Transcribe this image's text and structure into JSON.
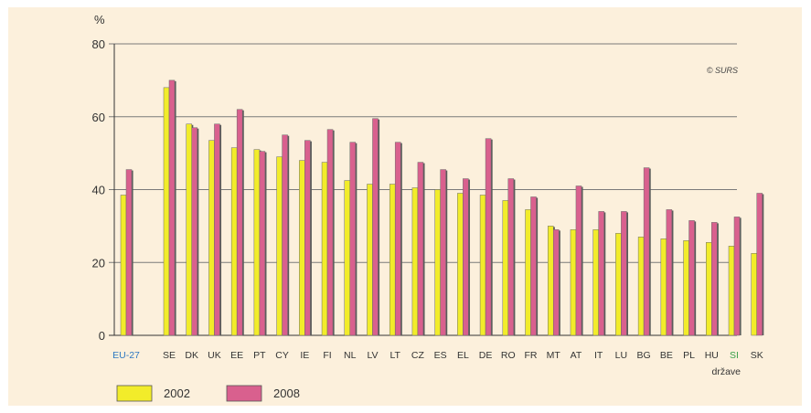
{
  "chart_data": {
    "type": "bar",
    "ylabel": "%",
    "xlabel": "države",
    "credit": "© SURS",
    "ylim": [
      0,
      80
    ],
    "yticks": [
      0,
      20,
      40,
      60,
      80
    ],
    "grid": true,
    "legend_position": "bottom-left",
    "categories": [
      "EU-27",
      "SE",
      "DK",
      "UK",
      "EE",
      "PT",
      "CY",
      "IE",
      "FI",
      "NL",
      "LV",
      "LT",
      "CZ",
      "ES",
      "EL",
      "DE",
      "RO",
      "FR",
      "MT",
      "AT",
      "IT",
      "LU",
      "BG",
      "BE",
      "PL",
      "HU",
      "SI",
      "SK"
    ],
    "category_colors": {
      "EU-27": "#2e78c2",
      "SI": "#3aa04a",
      "default": "#333333"
    },
    "series": [
      {
        "name": "2002",
        "color": "#f2ec2a",
        "values": [
          38.5,
          68,
          58,
          53.5,
          51.5,
          51,
          49,
          48,
          47.5,
          42.5,
          41.5,
          41.5,
          40.5,
          40,
          39,
          38.5,
          37,
          34.5,
          30,
          29,
          29,
          28,
          27,
          26.5,
          26,
          25.5,
          24.5,
          22.5
        ]
      },
      {
        "name": "2008",
        "color": "#d9608e",
        "values": [
          45.5,
          70,
          57,
          58,
          62,
          50.5,
          55,
          53.5,
          56.5,
          53,
          59.5,
          53,
          47.5,
          45.5,
          43,
          54,
          43,
          38,
          29,
          41,
          34,
          34,
          46,
          34.5,
          31.5,
          31,
          32.5,
          39
        ]
      }
    ]
  }
}
